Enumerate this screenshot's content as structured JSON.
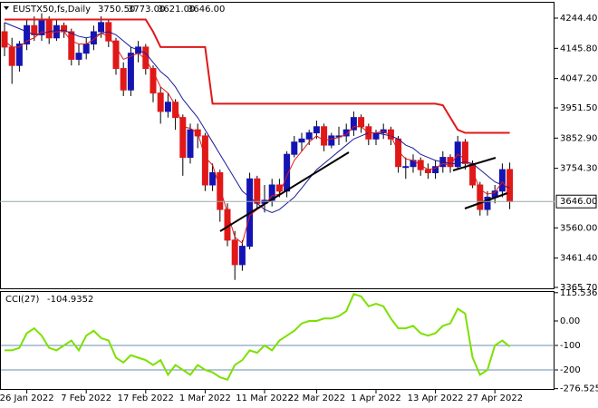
{
  "chart_data": [
    {
      "type": "candlestick",
      "title": "EUSTX50,fs,Daily",
      "header_values": [
        "3750.50",
        "3773.00",
        "3621.00",
        "3646.00"
      ],
      "categories": [
        null,
        null,
        null,
        "26 Jan 2022",
        null,
        null,
        null,
        null,
        null,
        null,
        null,
        "7 Feb 2022",
        null,
        null,
        null,
        null,
        null,
        null,
        null,
        "17 Feb 2022",
        null,
        null,
        null,
        null,
        null,
        null,
        null,
        "1 Mar 2022",
        null,
        null,
        null,
        null,
        null,
        null,
        null,
        "11 Mar 2022",
        null,
        null,
        null,
        null,
        null,
        null,
        "22 Mar 2022",
        null,
        null,
        null,
        null,
        null,
        null,
        null,
        "1 Apr 2022",
        null,
        null,
        null,
        null,
        null,
        null,
        null,
        "13 Apr 2022",
        null,
        null,
        null,
        null,
        null,
        null,
        null,
        "27 Apr 2022",
        null,
        null
      ],
      "open": [
        4200,
        4150,
        4090,
        4160,
        4220,
        4190,
        4240,
        4180,
        4220,
        4200,
        4110,
        4130,
        4160,
        4200,
        4230,
        4170,
        4080,
        4010,
        4130,
        4150,
        4080,
        4000,
        3940,
        3970,
        3920,
        3790,
        3880,
        3860,
        3700,
        3740,
        3620,
        3520,
        3440,
        3500,
        3720,
        3640,
        3650,
        3700,
        3680,
        3800,
        3840,
        3850,
        3870,
        3890,
        3830,
        3860,
        3860,
        3880,
        3920,
        3890,
        3850,
        3870,
        3880,
        3850,
        3760,
        3760,
        3780,
        3750,
        3740,
        3760,
        3790,
        3760,
        3840,
        3770,
        3700,
        3620,
        3660,
        3680,
        3750.5
      ],
      "high": [
        4230,
        4180,
        4170,
        4240,
        4250,
        4260,
        4250,
        4240,
        4230,
        4210,
        4160,
        4180,
        4220,
        4250,
        4240,
        4180,
        4100,
        4150,
        4170,
        4160,
        4090,
        4020,
        4000,
        3980,
        3930,
        3900,
        3900,
        3870,
        3770,
        3750,
        3640,
        3550,
        3520,
        3740,
        3730,
        3700,
        3720,
        3720,
        3810,
        3860,
        3870,
        3880,
        3910,
        3900,
        3870,
        3890,
        3900,
        3940,
        3930,
        3900,
        3880,
        3900,
        3890,
        3860,
        3790,
        3800,
        3790,
        3770,
        3780,
        3810,
        3800,
        3860,
        3850,
        3780,
        3710,
        3680,
        3700,
        3770,
        3773
      ],
      "low": [
        4120,
        4030,
        4070,
        4140,
        4170,
        4170,
        4160,
        4170,
        4180,
        4090,
        4090,
        4110,
        4140,
        4180,
        4150,
        4060,
        3990,
        3990,
        4100,
        4060,
        3970,
        3900,
        3920,
        3880,
        3730,
        3770,
        3820,
        3680,
        3680,
        3580,
        3500,
        3390,
        3420,
        3490,
        3620,
        3610,
        3630,
        3660,
        3660,
        3790,
        3810,
        3830,
        3850,
        3810,
        3820,
        3830,
        3840,
        3860,
        3870,
        3830,
        3830,
        3850,
        3830,
        3740,
        3720,
        3740,
        3730,
        3720,
        3720,
        3740,
        3740,
        3750,
        3750,
        3690,
        3600,
        3600,
        3640,
        3660,
        3621
      ],
      "close": [
        4150,
        4090,
        4160,
        4220,
        4190,
        4240,
        4180,
        4220,
        4200,
        4110,
        4130,
        4160,
        4200,
        4230,
        4170,
        4080,
        4010,
        4130,
        4150,
        4080,
        4000,
        3940,
        3970,
        3920,
        3790,
        3880,
        3860,
        3700,
        3740,
        3620,
        3520,
        3440,
        3500,
        3720,
        3640,
        3650,
        3700,
        3680,
        3800,
        3840,
        3850,
        3870,
        3890,
        3830,
        3860,
        3860,
        3880,
        3920,
        3890,
        3850,
        3870,
        3880,
        3850,
        3760,
        3760,
        3780,
        3750,
        3740,
        3760,
        3790,
        3760,
        3840,
        3770,
        3700,
        3620,
        3660,
        3680,
        3750,
        3646
      ],
      "up_color": "#1414b4",
      "down_color": "#e01818",
      "overlays": [
        {
          "color": "#1a1a9a",
          "width": 1,
          "values": [
            4230,
            4220,
            4210,
            4200,
            4190,
            4195,
            4200,
            4205,
            4205,
            4195,
            4185,
            4180,
            4185,
            4195,
            4200,
            4190,
            4170,
            4150,
            4140,
            4130,
            4100,
            4070,
            4050,
            4020,
            3980,
            3950,
            3920,
            3880,
            3840,
            3800,
            3760,
            3720,
            3680,
            3660,
            3640,
            3620,
            3610,
            3620,
            3640,
            3660,
            3690,
            3720,
            3750,
            3770,
            3790,
            3810,
            3830,
            3850,
            3860,
            3870,
            3870,
            3865,
            3860,
            3850,
            3830,
            3820,
            3800,
            3790,
            3780,
            3775,
            3770,
            3770,
            3775,
            3770,
            3750,
            3730,
            3710,
            3700,
            3690
          ]
        },
        {
          "color": "#e01818",
          "width": 1,
          "values": [
            4170,
            4150,
            4150,
            4170,
            4180,
            4200,
            4195,
            4200,
            4200,
            4170,
            4160,
            4160,
            4175,
            4195,
            4185,
            4150,
            4110,
            4120,
            4130,
            4110,
            4070,
            4020,
            4000,
            3960,
            3890,
            3885,
            3870,
            3790,
            3765,
            3690,
            3610,
            3530,
            3510,
            3600,
            3620,
            3635,
            3665,
            3670,
            3730,
            3780,
            3810,
            3840,
            3860,
            3845,
            3850,
            3855,
            3865,
            3890,
            3890,
            3870,
            3870,
            3875,
            3860,
            3810,
            3785,
            3780,
            3765,
            3750,
            3755,
            3770,
            3765,
            3800,
            3785,
            3745,
            3685,
            3670,
            3675,
            3710,
            3680
          ]
        },
        {
          "color": "#e01818",
          "width": 2,
          "values": [
            4240,
            4240,
            4240,
            4240,
            4240,
            4240,
            4240,
            4240,
            4240,
            4240,
            4240,
            4240,
            4240,
            4240,
            4240,
            4240,
            4240,
            4240,
            4240,
            4240,
            4200,
            4150,
            4150,
            4150,
            4150,
            4150,
            4150,
            4150,
            3965,
            3965,
            3965,
            3965,
            3965,
            3965,
            3965,
            3965,
            3965,
            3965,
            3965,
            3965,
            3965,
            3965,
            3965,
            3965,
            3965,
            3965,
            3965,
            3965,
            3965,
            3965,
            3965,
            3965,
            3965,
            3965,
            3965,
            3965,
            3965,
            3965,
            3965,
            3960,
            3920,
            3880,
            3870,
            3870,
            3870,
            3870,
            3870,
            3870,
            3870
          ]
        }
      ],
      "ylim": [
        3362.7,
        4294.7
      ],
      "yticks": [
        {
          "value": 4244.4,
          "label": "4244.40"
        },
        {
          "value": 4145.8,
          "label": "4145.80"
        },
        {
          "value": 4047.2,
          "label": "4047.20"
        },
        {
          "value": 3951.5,
          "label": "3951.50"
        },
        {
          "value": 3852.9,
          "label": "3852.90"
        },
        {
          "value": 3754.3,
          "label": "3754.30"
        },
        {
          "value": 3560,
          "label": "3560.00"
        },
        {
          "value": 3461.4,
          "label": "3461.40"
        },
        {
          "value": 3365.7,
          "label": "3365.70"
        }
      ],
      "price_tag": {
        "value": 3646,
        "label": "3646.00"
      }
    },
    {
      "type": "line",
      "title": "CCI(27)",
      "color": "#7ce000",
      "values": [
        -120,
        -120,
        -110,
        -50,
        -30,
        -60,
        -110,
        -120,
        -100,
        -80,
        -120,
        -60,
        -40,
        -70,
        -80,
        -150,
        -170,
        -140,
        -150,
        -160,
        -180,
        -160,
        -220,
        -180,
        -200,
        -220,
        -180,
        -200,
        -210,
        -230,
        -240,
        -180,
        -160,
        -120,
        -130,
        -100,
        -120,
        -80,
        -60,
        -40,
        -10,
        0,
        0,
        10,
        10,
        20,
        40,
        110,
        100,
        60,
        70,
        60,
        10,
        -30,
        -30,
        -20,
        -50,
        -60,
        -50,
        -20,
        -10,
        50,
        30,
        -150,
        -220,
        -200,
        -100,
        -80,
        -104.9352
      ],
      "ylim": [
        -281.5,
        118.5
      ],
      "yticks": [
        {
          "value": 115.536,
          "label": "115.536"
        },
        {
          "value": 0,
          "label": "0.00"
        },
        -100,
        -200,
        {
          "value": -276.5253,
          "label": "-276.5253"
        }
      ],
      "levels": [
        -100,
        -200
      ],
      "level_color": "#6a8fb0"
    }
  ]
}
